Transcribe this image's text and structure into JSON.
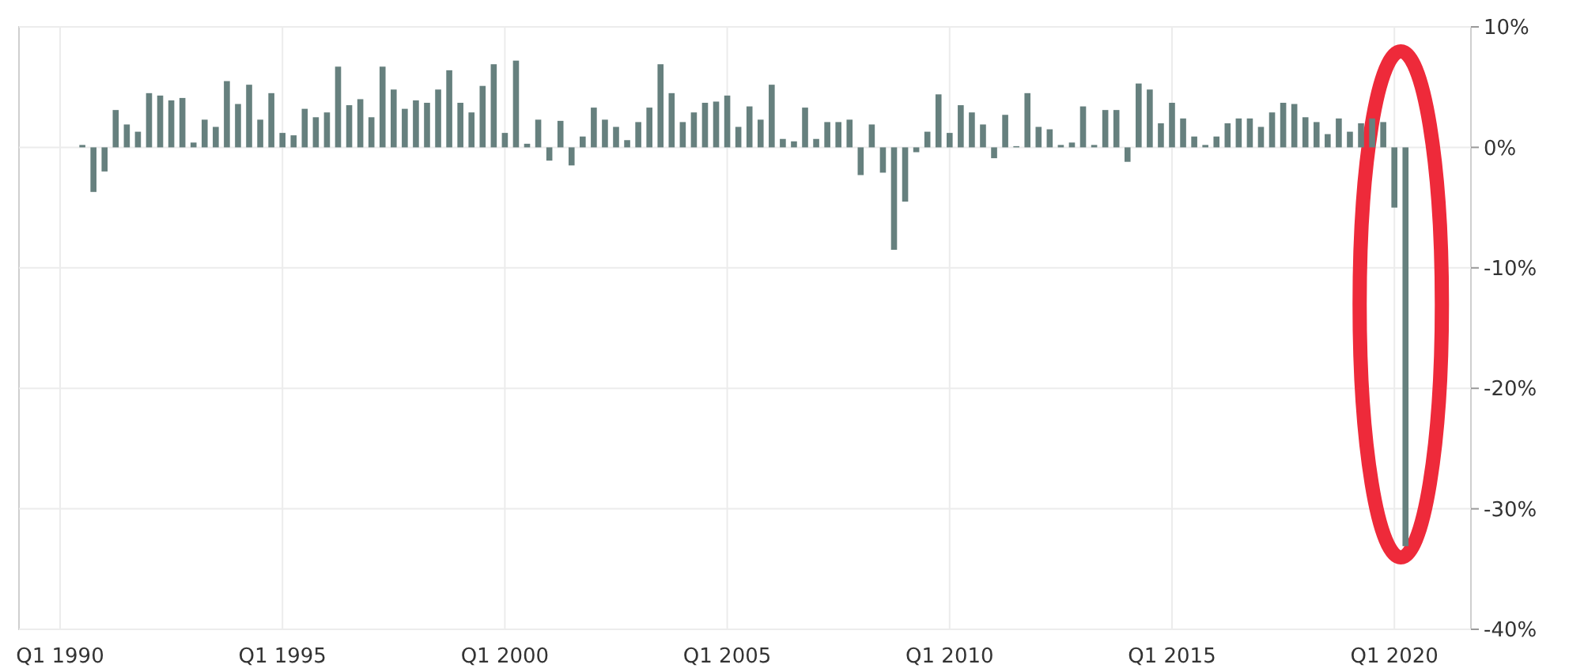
{
  "chart_data": {
    "type": "bar",
    "categories": [
      "Q1 1990",
      null,
      null,
      null,
      null,
      null,
      null,
      null,
      null,
      null,
      null,
      null,
      null,
      null,
      null,
      null,
      null,
      null,
      null,
      null,
      "Q1 1995",
      null,
      null,
      null,
      null,
      null,
      null,
      null,
      null,
      null,
      null,
      null,
      null,
      null,
      null,
      null,
      null,
      null,
      null,
      null,
      "Q1 2000",
      null,
      null,
      null,
      null,
      null,
      null,
      null,
      null,
      null,
      null,
      null,
      null,
      null,
      null,
      null,
      null,
      null,
      null,
      null,
      "Q1 2005",
      null,
      null,
      null,
      null,
      null,
      null,
      null,
      null,
      null,
      null,
      null,
      null,
      null,
      null,
      null,
      null,
      null,
      null,
      null,
      "Q1 2010",
      null,
      null,
      null,
      null,
      null,
      null,
      null,
      null,
      null,
      null,
      null,
      null,
      null,
      null,
      null,
      null,
      null,
      null,
      null,
      "Q1 2015",
      null,
      null,
      null,
      null,
      null,
      null,
      null,
      null,
      null,
      null,
      null,
      null,
      null,
      null,
      null,
      null,
      null,
      null,
      null,
      "Q1 2020",
      null
    ],
    "values": [
      null,
      null,
      0.2,
      -3.7,
      -2.0,
      3.1,
      1.9,
      1.3,
      4.5,
      4.3,
      3.9,
      4.1,
      0.4,
      2.3,
      1.7,
      5.5,
      3.6,
      5.2,
      2.3,
      4.5,
      1.2,
      1.0,
      3.2,
      2.5,
      2.9,
      6.7,
      3.5,
      4.0,
      2.5,
      6.7,
      4.8,
      3.2,
      3.9,
      3.7,
      4.8,
      6.4,
      3.7,
      2.9,
      5.1,
      6.9,
      1.2,
      7.2,
      0.3,
      2.3,
      -1.1,
      2.2,
      -1.5,
      0.9,
      3.3,
      2.3,
      1.7,
      0.6,
      2.1,
      3.3,
      6.9,
      4.5,
      2.1,
      2.9,
      3.7,
      3.8,
      4.3,
      1.7,
      3.4,
      2.3,
      5.2,
      0.7,
      0.5,
      3.3,
      0.7,
      2.1,
      2.1,
      2.3,
      -2.3,
      1.9,
      -2.1,
      -8.5,
      -4.5,
      -0.4,
      1.3,
      4.4,
      1.2,
      3.5,
      2.9,
      1.9,
      -0.9,
      2.7,
      0.1,
      4.5,
      1.7,
      1.5,
      0.2,
      0.4,
      3.4,
      0.2,
      3.1,
      3.1,
      -1.2,
      5.3,
      4.8,
      2.0,
      3.7,
      2.4,
      0.9,
      0.2,
      0.9,
      2.0,
      2.4,
      2.4,
      1.7,
      2.9,
      3.7,
      3.6,
      2.5,
      2.1,
      1.1,
      2.4,
      1.3,
      2.0,
      2.4,
      2.1,
      -5.0,
      -33.1
    ],
    "color": "#66807e",
    "ylim": [
      -40,
      10
    ],
    "yticks": [
      {
        "value": 10,
        "label": "10%"
      },
      {
        "value": 0,
        "label": "0%"
      },
      {
        "value": -10,
        "label": "-10%"
      },
      {
        "value": -20,
        "label": "-20%"
      },
      {
        "value": -30,
        "label": "-30%"
      },
      {
        "value": -40,
        "label": "-40%"
      }
    ],
    "grid": true
  }
}
